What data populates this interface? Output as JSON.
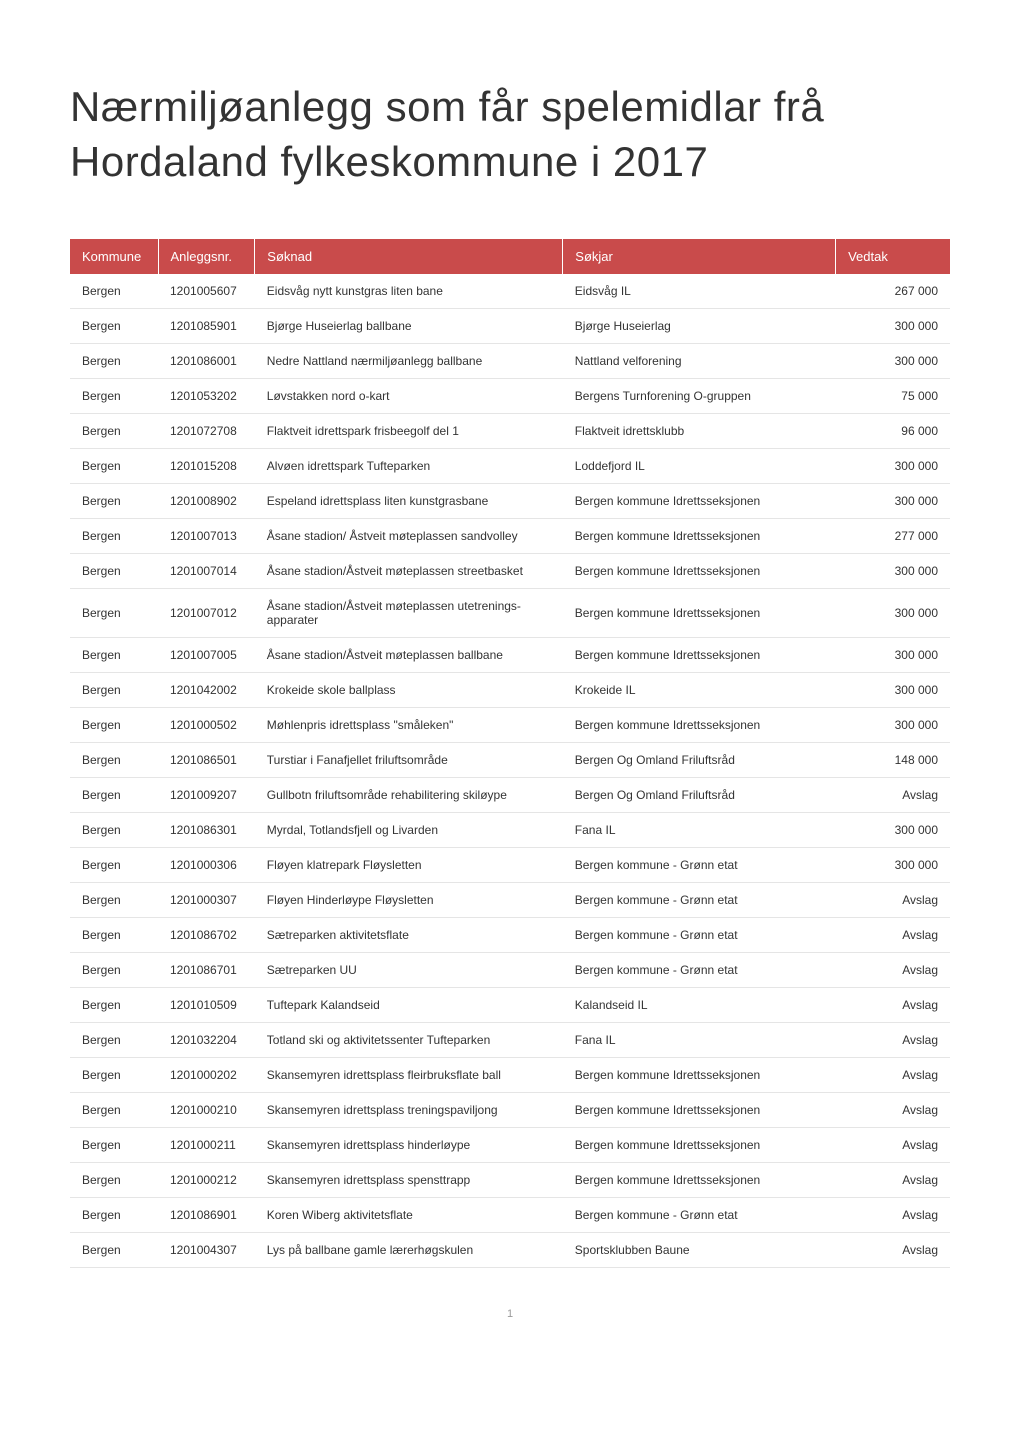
{
  "title": "Nærmiljøanlegg som får spelemidlar frå Hordaland fylkeskommune i 2017",
  "page_number": "1",
  "table": {
    "columns": [
      "Kommune",
      "Anleggsnr.",
      "Søknad",
      "Søkjar",
      "Vedtak"
    ],
    "header_bg_color": "#c94b4b",
    "header_text_color": "#ffffff",
    "row_border_color": "#e5e5e5",
    "title_fontsize": 42,
    "cell_fontsize": 12,
    "header_fontsize": 13,
    "rows": [
      {
        "kommune": "Bergen",
        "anleggsnr": "1201005607",
        "soknad": "Eidsvåg nytt kunstgras liten bane",
        "sokjar": "Eidsvåg IL",
        "vedtak": "267 000"
      },
      {
        "kommune": "Bergen",
        "anleggsnr": "1201085901",
        "soknad": "Bjørge Huseierlag ballbane",
        "sokjar": "Bjørge Huseierlag",
        "vedtak": "300 000"
      },
      {
        "kommune": "Bergen",
        "anleggsnr": "1201086001",
        "soknad": "Nedre Nattland nærmiljøanlegg ballbane",
        "sokjar": "Nattland velforening",
        "vedtak": "300 000"
      },
      {
        "kommune": "Bergen",
        "anleggsnr": "1201053202",
        "soknad": "Løvstakken nord o-kart",
        "sokjar": "Bergens Turnforening O-gruppen",
        "vedtak": "75 000"
      },
      {
        "kommune": "Bergen",
        "anleggsnr": "1201072708",
        "soknad": "Flaktveit idrettspark frisbeegolf del 1",
        "sokjar": "Flaktveit idrettsklubb",
        "vedtak": "96 000"
      },
      {
        "kommune": "Bergen",
        "anleggsnr": "1201015208",
        "soknad": "Alvøen idrettspark Tufteparken",
        "sokjar": "Loddefjord IL",
        "vedtak": "300 000"
      },
      {
        "kommune": "Bergen",
        "anleggsnr": "1201008902",
        "soknad": "Espeland idrettsplass liten kunstgrasbane",
        "sokjar": "Bergen kommune Idrettsseksjonen",
        "vedtak": "300 000"
      },
      {
        "kommune": "Bergen",
        "anleggsnr": "1201007013",
        "soknad": "Åsane stadion/ Åstveit møteplassen sandvolley",
        "sokjar": "Bergen kommune Idrettsseksjonen",
        "vedtak": "277 000"
      },
      {
        "kommune": "Bergen",
        "anleggsnr": "1201007014",
        "soknad": "Åsane stadion/Åstveit møteplassen streetbasket",
        "sokjar": "Bergen kommune Idrettsseksjonen",
        "vedtak": "300 000"
      },
      {
        "kommune": "Bergen",
        "anleggsnr": "1201007012",
        "soknad": "Åsane stadion/Åstveit møteplassen utetrenings-apparater",
        "sokjar": "Bergen kommune Idrettsseksjonen",
        "vedtak": "300 000"
      },
      {
        "kommune": "Bergen",
        "anleggsnr": "1201007005",
        "soknad": "Åsane stadion/Åstveit møteplassen ballbane",
        "sokjar": "Bergen kommune Idrettsseksjonen",
        "vedtak": "300 000"
      },
      {
        "kommune": "Bergen",
        "anleggsnr": "1201042002",
        "soknad": "Krokeide skole ballplass",
        "sokjar": "Krokeide IL",
        "vedtak": "300 000"
      },
      {
        "kommune": "Bergen",
        "anleggsnr": "1201000502",
        "soknad": "Møhlenpris idrettsplass \"småleken\"",
        "sokjar": "Bergen kommune Idrettsseksjonen",
        "vedtak": "300 000"
      },
      {
        "kommune": "Bergen",
        "anleggsnr": "1201086501",
        "soknad": "Turstiar i Fanafjellet friluftsområde",
        "sokjar": "Bergen Og Omland Friluftsråd",
        "vedtak": "148 000"
      },
      {
        "kommune": "Bergen",
        "anleggsnr": "1201009207",
        "soknad": "Gullbotn friluftsområde rehabilitering skiløype",
        "sokjar": "Bergen Og Omland Friluftsråd",
        "vedtak": "Avslag"
      },
      {
        "kommune": "Bergen",
        "anleggsnr": "1201086301",
        "soknad": "Myrdal, Totlandsfjell og Livarden",
        "sokjar": "Fana IL",
        "vedtak": "300 000"
      },
      {
        "kommune": "Bergen",
        "anleggsnr": "1201000306",
        "soknad": "Fløyen klatrepark Fløysletten",
        "sokjar": "Bergen kommune - Grønn etat",
        "vedtak": "300 000"
      },
      {
        "kommune": "Bergen",
        "anleggsnr": "1201000307",
        "soknad": "Fløyen Hinderløype Fløysletten",
        "sokjar": "Bergen kommune - Grønn etat",
        "vedtak": "Avslag"
      },
      {
        "kommune": "Bergen",
        "anleggsnr": "1201086702",
        "soknad": "Sætreparken aktivitetsflate",
        "sokjar": "Bergen kommune - Grønn etat",
        "vedtak": "Avslag"
      },
      {
        "kommune": "Bergen",
        "anleggsnr": "1201086701",
        "soknad": "Sætreparken UU",
        "sokjar": "Bergen kommune - Grønn etat",
        "vedtak": "Avslag"
      },
      {
        "kommune": "Bergen",
        "anleggsnr": "1201010509",
        "soknad": "Tuftepark Kalandseid",
        "sokjar": "Kalandseid IL",
        "vedtak": "Avslag"
      },
      {
        "kommune": "Bergen",
        "anleggsnr": "1201032204",
        "soknad": "Totland ski og aktivitetssenter Tufteparken",
        "sokjar": "Fana IL",
        "vedtak": "Avslag"
      },
      {
        "kommune": "Bergen",
        "anleggsnr": "1201000202",
        "soknad": "Skansemyren idrettsplass fleirbruksflate ball",
        "sokjar": "Bergen kommune Idrettsseksjonen",
        "vedtak": "Avslag"
      },
      {
        "kommune": "Bergen",
        "anleggsnr": "1201000210",
        "soknad": "Skansemyren idrettsplass treningspaviljong",
        "sokjar": "Bergen kommune Idrettsseksjonen",
        "vedtak": "Avslag"
      },
      {
        "kommune": "Bergen",
        "anleggsnr": "1201000211",
        "soknad": "Skansemyren idrettsplass hinderløype",
        "sokjar": "Bergen kommune Idrettsseksjonen",
        "vedtak": "Avslag"
      },
      {
        "kommune": "Bergen",
        "anleggsnr": "1201000212",
        "soknad": "Skansemyren idrettsplass spensttrapp",
        "sokjar": "Bergen kommune Idrettsseksjonen",
        "vedtak": "Avslag"
      },
      {
        "kommune": "Bergen",
        "anleggsnr": "1201086901",
        "soknad": "Koren Wiberg aktivitetsflate",
        "sokjar": "Bergen kommune - Grønn etat",
        "vedtak": "Avslag"
      },
      {
        "kommune": "Bergen",
        "anleggsnr": "1201004307",
        "soknad": "Lys på ballbane gamle lærerhøgskulen",
        "sokjar": "Sportsklubben Baune",
        "vedtak": "Avslag"
      }
    ]
  }
}
